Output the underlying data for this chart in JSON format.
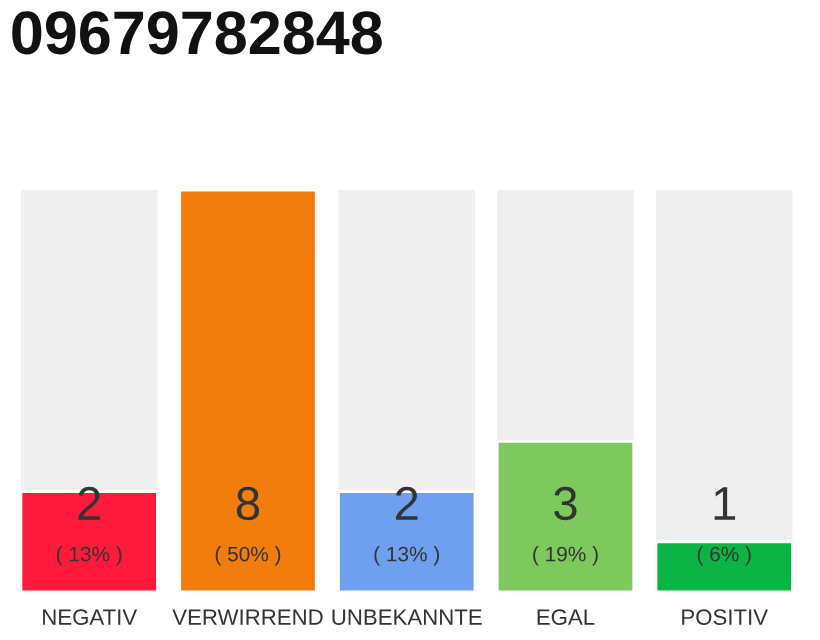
{
  "chart_data": {
    "type": "bar",
    "title": "09679782848",
    "categories": [
      "NEGATIV",
      "VERWIRREND",
      "UNBEKANNTE",
      "EGAL",
      "POSITIV"
    ],
    "values": [
      2,
      8,
      2,
      3,
      1
    ],
    "colors": [
      "#ff1a3c",
      "#f07d0c",
      "#6fa0ef",
      "#7dc95e",
      "#0ab545"
    ],
    "data_labels": true,
    "annotations": [
      "( 13% )",
      "( 50% )",
      "( 13% )",
      "( 19% )",
      "( 6% )"
    ],
    "grid": false,
    "legend": false
  }
}
